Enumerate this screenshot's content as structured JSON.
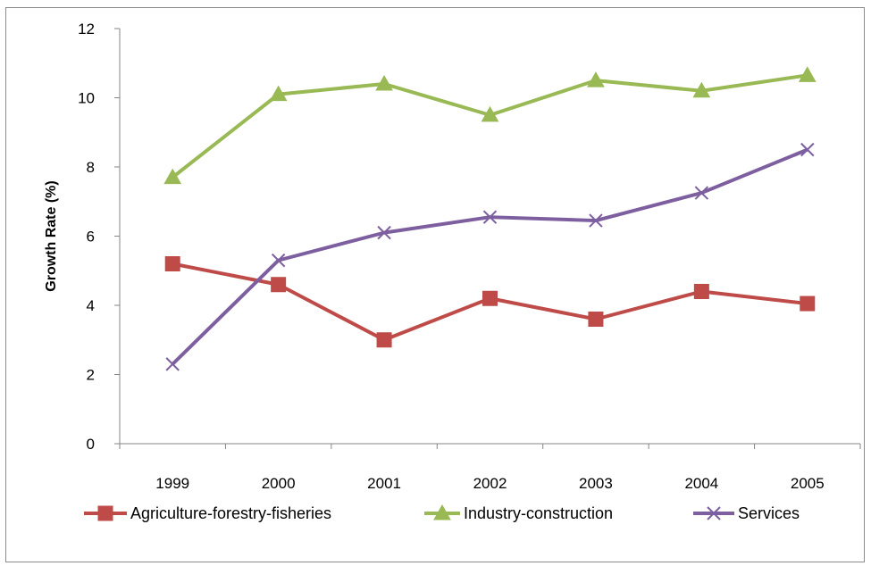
{
  "chart_data": {
    "type": "line",
    "title": "",
    "xlabel": "",
    "ylabel": "Growth Rate (%)",
    "categories": [
      "1999",
      "2000",
      "2001",
      "2002",
      "2003",
      "2004",
      "2005"
    ],
    "ylim": [
      0,
      12
    ],
    "yticks": [
      0,
      2,
      4,
      6,
      8,
      10,
      12
    ],
    "grid": false,
    "legend_position": "bottom",
    "series": [
      {
        "name": "Agriculture-forestry-fisheries",
        "values": [
          5.2,
          4.6,
          3.0,
          4.2,
          3.6,
          4.4,
          4.05
        ],
        "color": "#be4b48",
        "marker": "square"
      },
      {
        "name": "Industry-construction",
        "values": [
          7.7,
          10.1,
          10.4,
          9.5,
          10.5,
          10.2,
          10.65
        ],
        "color": "#98b954",
        "marker": "triangle"
      },
      {
        "name": "Services",
        "values": [
          2.3,
          5.3,
          6.1,
          6.55,
          6.45,
          7.25,
          8.5
        ],
        "color": "#7d5fa0",
        "marker": "x"
      }
    ]
  }
}
